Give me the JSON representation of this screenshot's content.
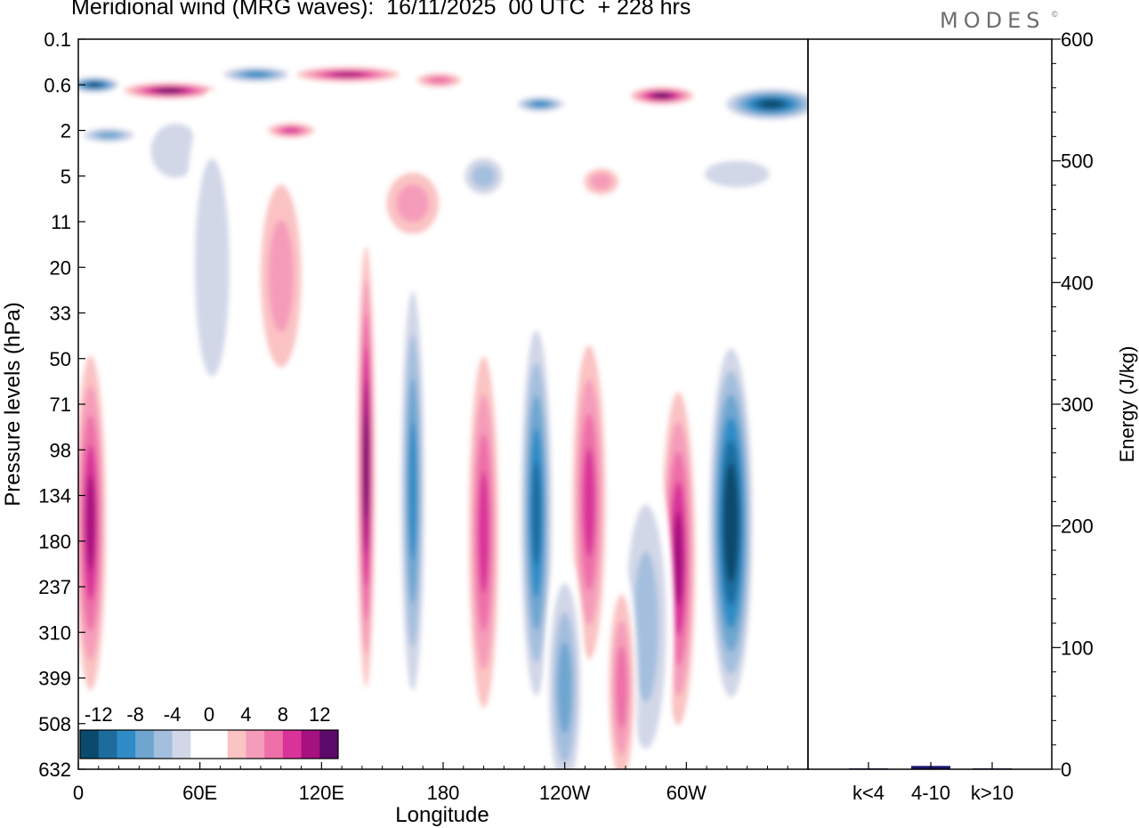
{
  "title": "Meridional wind (MRG waves):  16/11/2025  00 UTC  + 228 hrs",
  "logo": "MODES",
  "logo_mark": "©",
  "chart_data": [
    {
      "type": "heatmap",
      "title": "Meridional wind (MRG waves):  16/11/2025  00 UTC  + 228 hrs",
      "xlabel": "Longitude",
      "ylabel": "Pressure levels (hPa)",
      "x_ticks": [
        "0",
        "60E",
        "120E",
        "180",
        "120W",
        "60W"
      ],
      "y_ticks": [
        "0.1",
        "0.6",
        "2",
        "5",
        "11",
        "20",
        "33",
        "50",
        "71",
        "98",
        "134",
        "180",
        "237",
        "310",
        "399",
        "508",
        "632"
      ],
      "colorbar": {
        "labels": [
          "-12",
          "-8",
          "-4",
          "0",
          "4",
          "8",
          "12"
        ],
        "colors": [
          "#0a4a6c",
          "#1d6c9e",
          "#2f8cc6",
          "#6ea6d0",
          "#a4bfde",
          "#d2d7e8",
          "#ffffff",
          "#ffffff",
          "#fbc3c3",
          "#f59cba",
          "#ee6fa8",
          "#d9339a",
          "#a6107f",
          "#5c0a6a"
        ]
      },
      "blobs": [
        {
          "lon": 8,
          "lev": 0.6,
          "w": 14,
          "h": 1.3,
          "value": -13
        },
        {
          "lon": 45,
          "lev": 0.7,
          "w": 26,
          "h": 1.3,
          "value": 13
        },
        {
          "lon": 88,
          "lev": 0.4,
          "w": 20,
          "h": 0.9,
          "value": -10
        },
        {
          "lon": 133,
          "lev": 0.4,
          "w": 30,
          "h": 1.0,
          "value": 11
        },
        {
          "lon": 178,
          "lev": 0.5,
          "w": 14,
          "h": 0.9,
          "value": 7
        },
        {
          "lon": 228,
          "lev": 1.0,
          "w": 14,
          "h": 1.2,
          "value": -9
        },
        {
          "lon": 288,
          "lev": 0.8,
          "w": 18,
          "h": 1.3,
          "value": 13
        },
        {
          "lon": 342,
          "lev": 1.0,
          "w": 26,
          "h": 1.6,
          "value": -14
        },
        {
          "lon": 105,
          "lev": 2.0,
          "w": 14,
          "h": 1.1,
          "value": 9
        },
        {
          "lon": 15,
          "lev": 2.2,
          "w": 16,
          "h": 1.2,
          "value": -7
        },
        {
          "lon": 48,
          "lev": 3.0,
          "w": 20,
          "h": 2.5,
          "value": -4
        },
        {
          "lon": 200,
          "lev": 5.0,
          "w": 13,
          "h": 1.6,
          "value": -5
        },
        {
          "lon": 258,
          "lev": 5.5,
          "w": 12,
          "h": 1.4,
          "value": 6
        },
        {
          "lon": 325,
          "lev": 4.8,
          "w": 26,
          "h": 1.5,
          "value": -4
        },
        {
          "lon": 165,
          "lev": 8.0,
          "w": 18,
          "h": 2.0,
          "value": 6
        },
        {
          "lon": 66,
          "lev": 20.0,
          "w": 14,
          "h": 7.0,
          "value": -4
        },
        {
          "lon": 100,
          "lev": 22.0,
          "w": 14,
          "h": 4.0,
          "value": 5
        },
        {
          "lon": 142,
          "lev": 110.0,
          "w": 5,
          "h": 6.0,
          "value": 13
        },
        {
          "lon": 165,
          "lev": 130.0,
          "w": 7,
          "h": 5.5,
          "value": -10
        },
        {
          "lon": 200,
          "lev": 170.0,
          "w": 9,
          "h": 4.0,
          "value": 9
        },
        {
          "lon": 226,
          "lev": 150.0,
          "w": 9,
          "h": 4.0,
          "value": -11
        },
        {
          "lon": 252,
          "lev": 140.0,
          "w": 10,
          "h": 3.5,
          "value": 10
        },
        {
          "lon": 296,
          "lev": 200.0,
          "w": 10,
          "h": 3.5,
          "value": 12
        },
        {
          "lon": 322,
          "lev": 160.0,
          "w": 12,
          "h": 3.5,
          "value": -16
        },
        {
          "lon": 6,
          "lev": 160.0,
          "w": 9,
          "h": 3.5,
          "value": 11
        },
        {
          "lon": 280,
          "lev": 300.0,
          "w": 14,
          "h": 3.5,
          "value": -5
        },
        {
          "lon": 268,
          "lev": 420.0,
          "w": 8,
          "h": 2.5,
          "value": 8
        },
        {
          "lon": 240,
          "lev": 420.0,
          "w": 10,
          "h": 3.0,
          "value": -8
        }
      ]
    },
    {
      "type": "bar",
      "ylabel": "Energy (J/kg)",
      "categories": [
        "k<4",
        "4-10",
        "k>10"
      ],
      "values": [
        0,
        2,
        0
      ],
      "ylim": [
        0,
        600
      ],
      "y_ticks": [
        "0",
        "100",
        "200",
        "300",
        "400",
        "500",
        "600"
      ]
    }
  ]
}
